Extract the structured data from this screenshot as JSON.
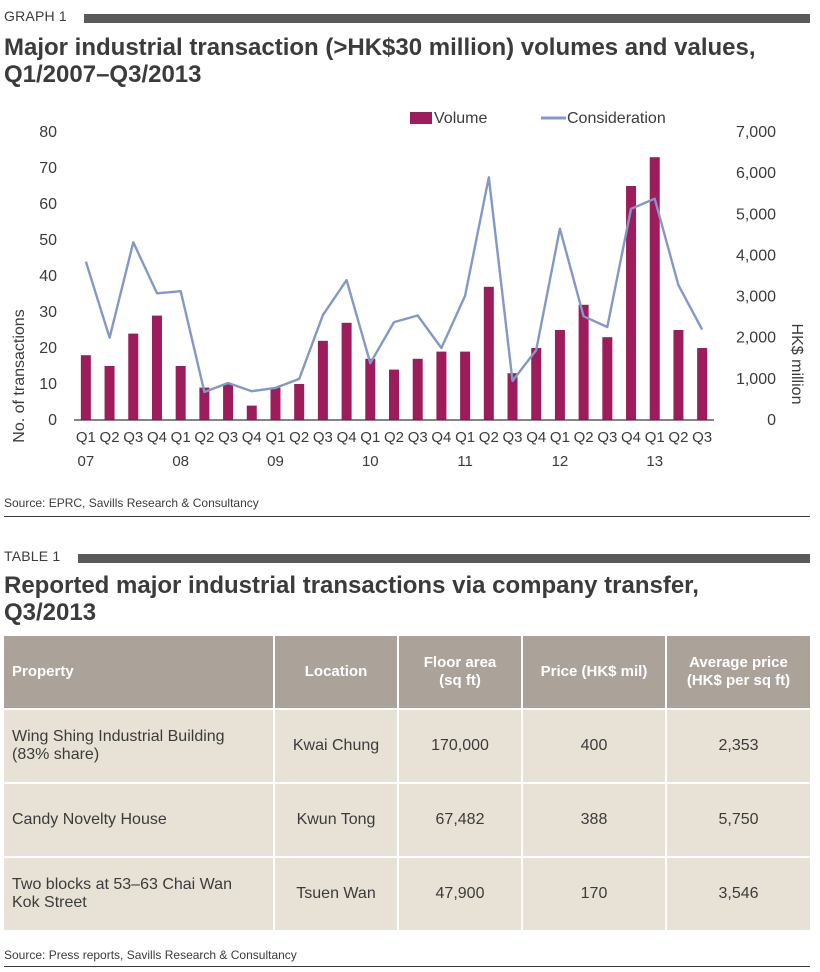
{
  "graph": {
    "label": "GRAPH 1",
    "title_line1": "Major industrial transaction (>HK$30 million) volumes and values,",
    "title_line2": "Q1/2007–Q3/2013",
    "source": "Source: EPRC, Savills Research & Consultancy"
  },
  "chart_data": {
    "type": "bar",
    "quarter_labels": [
      "Q1",
      "Q2",
      "Q3",
      "Q4",
      "Q1",
      "Q2",
      "Q3",
      "Q4",
      "Q1",
      "Q2",
      "Q3",
      "Q4",
      "Q1",
      "Q2",
      "Q3",
      "Q4",
      "Q1",
      "Q2",
      "Q3",
      "Q4",
      "Q1",
      "Q2",
      "Q3",
      "Q4",
      "Q1",
      "Q2",
      "Q3"
    ],
    "year_labels": [
      {
        "index": 0,
        "label": "07"
      },
      {
        "index": 4,
        "label": "08"
      },
      {
        "index": 8,
        "label": "09"
      },
      {
        "index": 12,
        "label": "10"
      },
      {
        "index": 16,
        "label": "11"
      },
      {
        "index": 20,
        "label": "12"
      },
      {
        "index": 24,
        "label": "13"
      }
    ],
    "series": [
      {
        "name": "Volume",
        "type": "bar",
        "axis": "left",
        "color": "#9c1c5c",
        "values": [
          18,
          15,
          24,
          29,
          15,
          9,
          10,
          4,
          9,
          10,
          22,
          27,
          17,
          14,
          17,
          19,
          19,
          37,
          13,
          20,
          25,
          32,
          23,
          65,
          73,
          25,
          20
        ]
      },
      {
        "name": "Consideration",
        "type": "line",
        "axis": "right",
        "color": "#8498c8",
        "values": [
          3850,
          2000,
          4320,
          3080,
          3130,
          680,
          900,
          700,
          780,
          1000,
          2550,
          3400,
          1380,
          2380,
          2540,
          1750,
          3020,
          5900,
          950,
          1700,
          4650,
          2520,
          2260,
          5130,
          5380,
          3280,
          2200
        ]
      }
    ],
    "ylabel": "No. of transactions",
    "y2label": "HK$ million",
    "ylim": [
      0,
      80
    ],
    "y2lim": [
      0,
      7000
    ],
    "yticks": [
      "0",
      "10",
      "20",
      "30",
      "40",
      "50",
      "60",
      "70",
      "80"
    ],
    "y2ticks": [
      "0",
      "1,000",
      "2,000",
      "3,000",
      "4,000",
      "5,000",
      "6,000",
      "7,000"
    ],
    "grid": false,
    "legend_position": "top-right"
  },
  "table": {
    "label": "TABLE 1",
    "title_line1": "Reported major industrial transactions via company transfer,",
    "title_line2": "Q3/2013",
    "headers": {
      "property": "Property",
      "location": "Location",
      "floor_l1": "Floor area",
      "floor_l2": "(sq ft)",
      "price": "Price (HK$ mil)",
      "avg_l1": "Average price",
      "avg_l2": "(HK$ per sq ft)"
    },
    "rows": [
      {
        "property_l1": "Wing Shing Industrial Building",
        "property_l2": "(83% share)",
        "location": "Kwai Chung",
        "floor_area": "170,000",
        "price": "400",
        "avg_price": "2,353"
      },
      {
        "property_l1": "Candy Novelty House",
        "property_l2": "",
        "location": "Kwun Tong",
        "floor_area": "67,482",
        "price": "388",
        "avg_price": "5,750"
      },
      {
        "property_l1": "Two blocks at 53–63 Chai Wan",
        "property_l2": "Kok Street",
        "location": "Tsuen Wan",
        "floor_area": "47,900",
        "price": "170",
        "avg_price": "3,546"
      }
    ],
    "source": "Source: Press reports, Savills Research & Consultancy"
  }
}
